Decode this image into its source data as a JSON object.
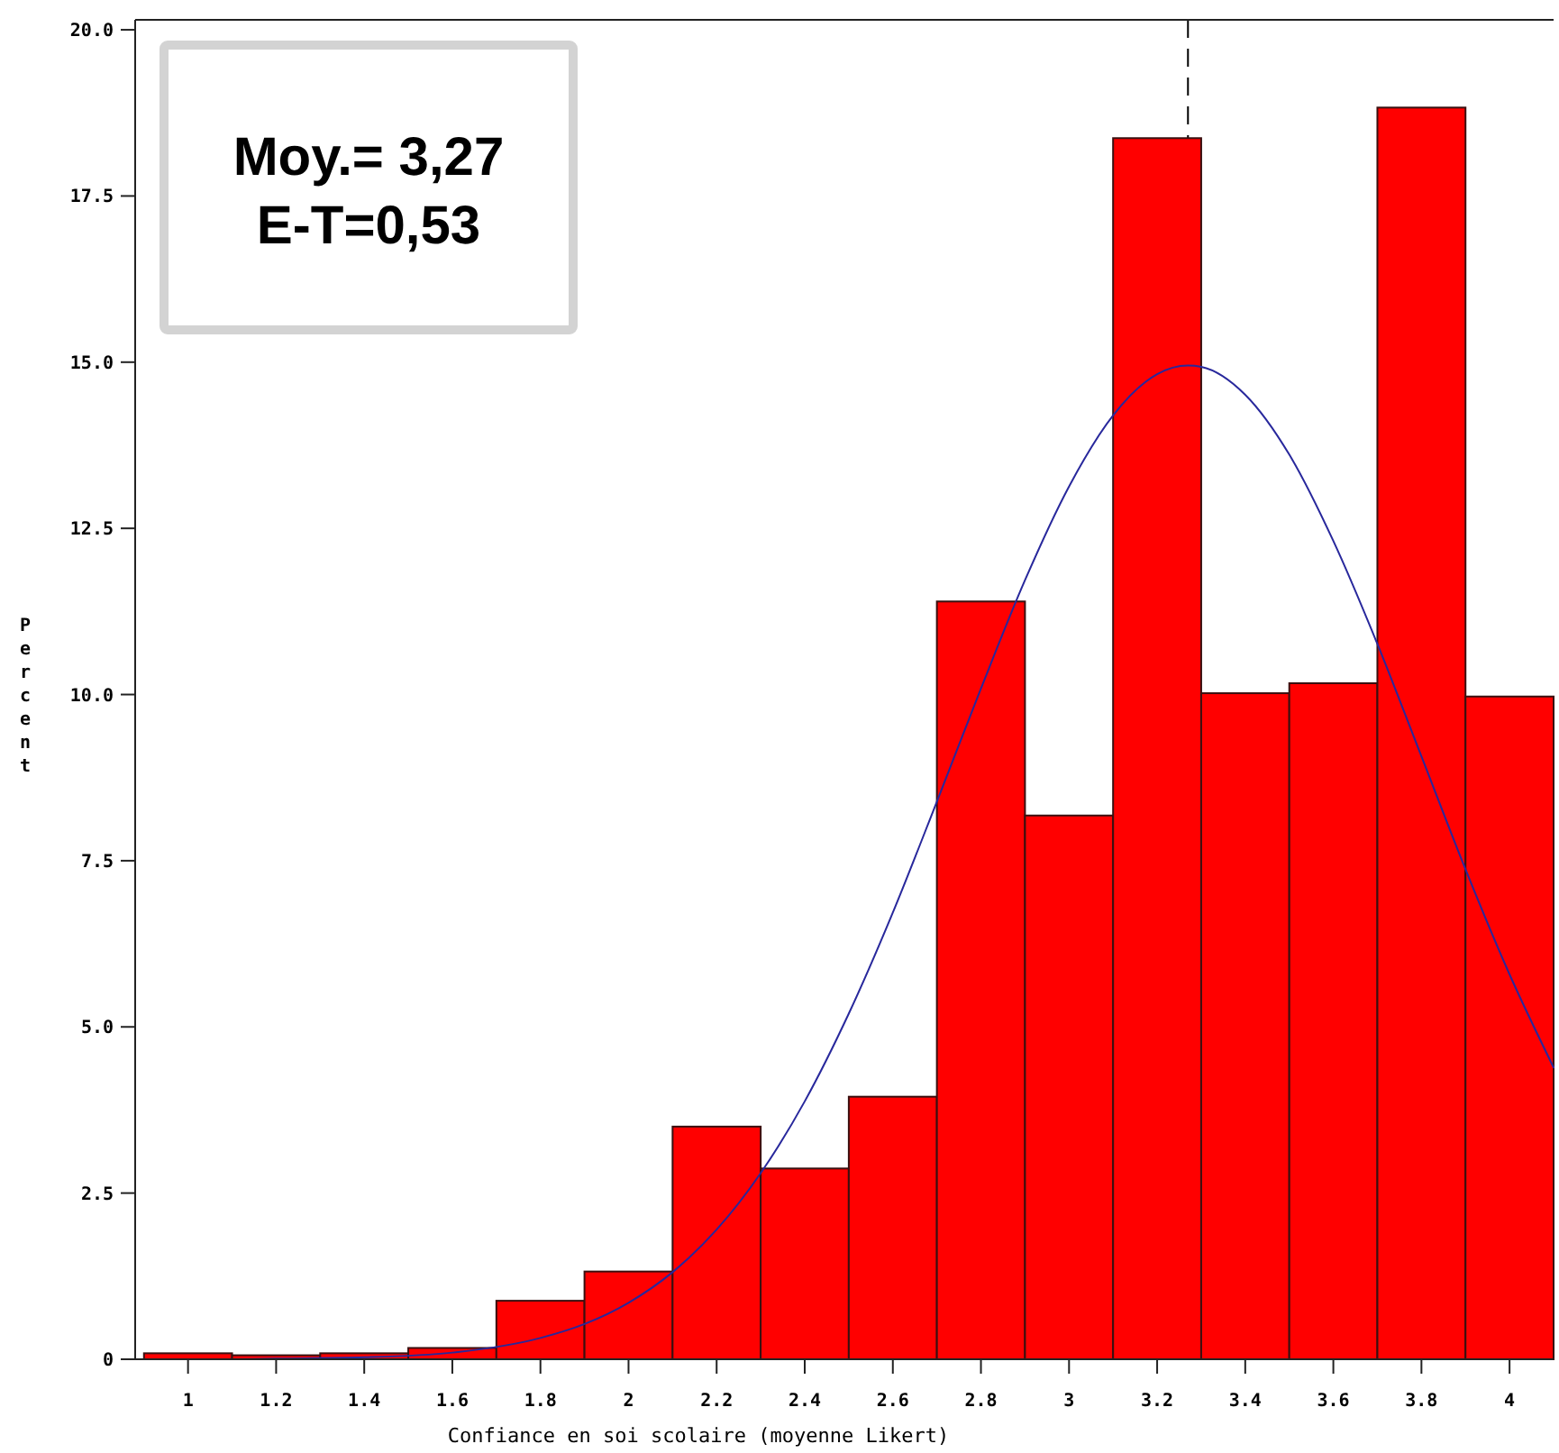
{
  "chart_data": {
    "type": "histogram",
    "xlabel": "Confiance en soi scolaire (moyenne Likert)",
    "ylabel": "Percent",
    "bins": [
      0.9,
      1.1,
      1.3,
      1.5,
      1.7,
      1.9,
      2.1,
      2.3,
      2.5,
      2.7,
      2.9,
      3.1,
      3.3,
      3.5,
      3.7,
      3.9,
      4.1
    ],
    "values": [
      0.09,
      0.06,
      0.09,
      0.17,
      0.88,
      1.32,
      3.5,
      2.87,
      3.95,
      11.4,
      8.18,
      18.37,
      10.02,
      10.17,
      18.83,
      9.97
    ],
    "color": "#ff0000",
    "series": [
      {
        "type": "line",
        "color": "#28289c",
        "x": [
          1.1,
          1.2,
          1.4,
          1.6,
          1.8,
          1.9,
          2.0,
          2.1,
          2.2,
          2.3,
          2.4,
          2.5,
          2.6,
          2.7,
          2.8,
          2.9,
          3.0,
          3.1,
          3.2,
          3.27,
          3.3,
          3.4,
          3.5,
          3.6,
          3.7,
          3.8,
          3.9,
          4.0,
          4.1
        ],
        "values": [
          0.0,
          0.01,
          0.03,
          0.1,
          0.32,
          0.53,
          0.85,
          1.31,
          1.95,
          2.8,
          3.88,
          5.2,
          6.72,
          8.39,
          10.09,
          11.72,
          13.13,
          14.2,
          14.82,
          14.95,
          14.93,
          14.51,
          13.61,
          12.31,
          10.76,
          9.07,
          7.37,
          5.79,
          4.39
        ]
      }
    ],
    "xlim": [
      0.88,
      4.1
    ],
    "ylim": [
      0,
      20.15
    ],
    "xticks": [
      1,
      1.2,
      1.4,
      1.6,
      1.8,
      2,
      2.2,
      2.4,
      2.6,
      2.8,
      3,
      3.2,
      3.4,
      3.6,
      3.8,
      4
    ],
    "yticks": [
      0,
      2.5,
      {
        "value": 5,
        "label": "5.0"
      },
      7.5,
      {
        "value": 10,
        "label": "10.0"
      },
      12.5,
      {
        "value": 15,
        "label": "15.0"
      },
      17.5,
      {
        "value": 20,
        "label": "20.0"
      }
    ],
    "ref_lines": [
      {
        "axis": "x",
        "value": 3.27,
        "color": "#000000",
        "line_style": "dashed"
      }
    ],
    "annotations": [
      "Moy.= 3,27",
      "E-T=0,53"
    ]
  }
}
